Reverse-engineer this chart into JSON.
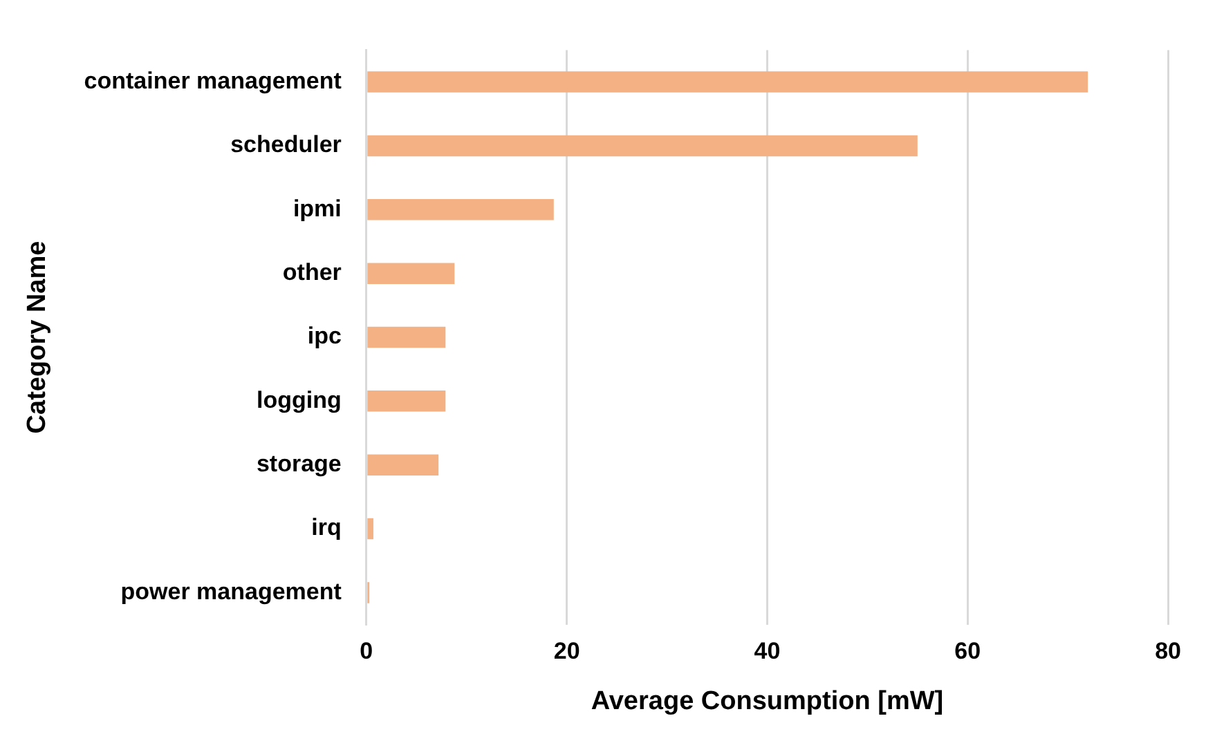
{
  "chart_data": {
    "type": "bar",
    "orientation": "horizontal",
    "xlabel": "Average Consumption [mW]",
    "ylabel": "Category Name",
    "categories": [
      "container management",
      "scheduler",
      "ipmi",
      "other",
      "ipc",
      "logging",
      "storage",
      "irq",
      "power management"
    ],
    "values": [
      72,
      55,
      18.7,
      8.8,
      7.9,
      7.9,
      7.2,
      0.7,
      0.3
    ],
    "color": "#f4b183",
    "xlim": [
      0,
      80
    ],
    "xticks": [
      0,
      20,
      40,
      60,
      80
    ],
    "grid": "x"
  }
}
